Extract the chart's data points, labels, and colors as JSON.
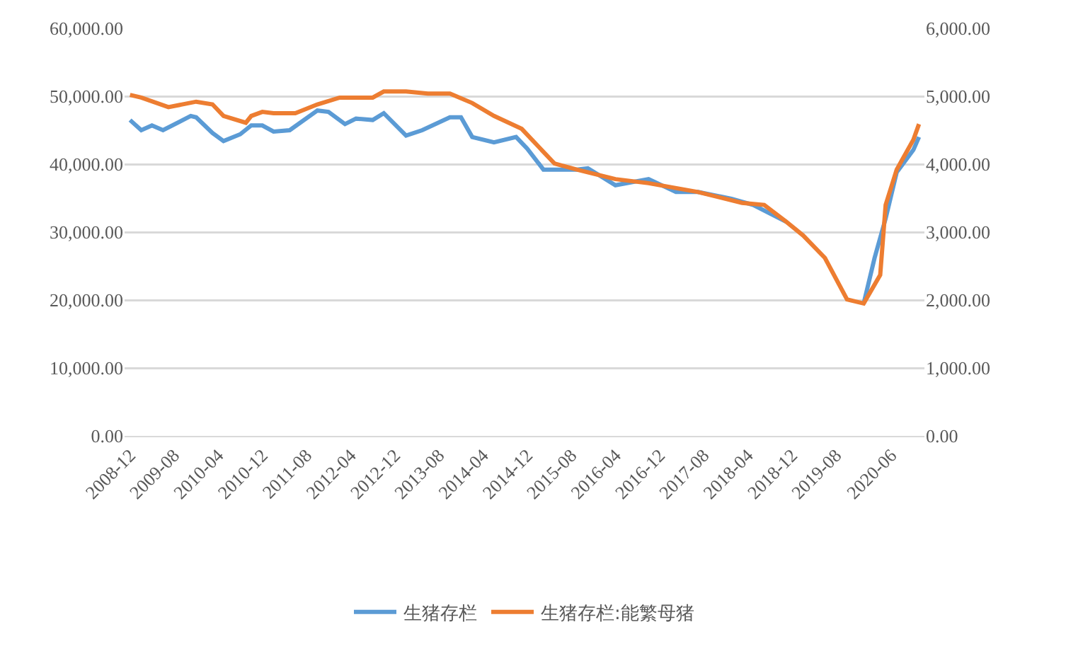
{
  "chart_data": {
    "type": "line",
    "x": [
      "2008-12",
      "2009-02",
      "2009-04",
      "2009-06",
      "2009-11",
      "2009-12",
      "2010-03",
      "2010-05",
      "2010-08",
      "2010-10",
      "2010-12",
      "2011-02",
      "2011-05",
      "2011-10",
      "2011-12",
      "2012-03",
      "2012-05",
      "2012-08",
      "2012-10",
      "2013-02",
      "2013-05",
      "2013-10",
      "2013-12",
      "2014-02",
      "2014-06",
      "2014-10",
      "2014-12",
      "2015-03",
      "2015-09",
      "2015-11",
      "2016-04",
      "2016-10",
      "2017-03",
      "2017-07",
      "2018-01",
      "2018-05",
      "2018-11",
      "2019-02",
      "2019-06",
      "2019-10",
      "2020-01",
      "2020-03",
      "2020-05",
      "2020-07",
      "2020-10",
      "2020-11"
    ],
    "series": [
      {
        "name": "生猪存栏",
        "color": "#5b9bd5",
        "axis": "y",
        "values": [
          46500,
          45000,
          45700,
          45000,
          47100,
          46900,
          44600,
          43400,
          44400,
          45700,
          45700,
          44800,
          45000,
          47900,
          47700,
          45900,
          46700,
          46500,
          47500,
          44200,
          45000,
          46900,
          46900,
          44000,
          43200,
          44000,
          42300,
          39200,
          39200,
          39400,
          36900,
          37800,
          35900,
          35900,
          34900,
          34000,
          31500,
          null,
          null,
          null,
          19500,
          26200,
          32000,
          38800,
          42100,
          44000
        ]
      },
      {
        "name": "生猪存栏:能繁母猪",
        "color": "#ed7d31",
        "axis": "y2",
        "x": [
          "2008-12",
          "2009-02",
          "2009-07",
          "2009-12",
          "2010-03",
          "2010-05",
          "2010-09",
          "2010-10",
          "2010-12",
          "2011-02",
          "2011-06",
          "2011-10",
          "2012-02",
          "2012-08",
          "2012-10",
          "2013-02",
          "2013-06",
          "2013-10",
          "2014-02",
          "2014-06",
          "2014-11",
          "2015-02",
          "2015-05",
          "2015-09",
          "2016-04",
          "2016-10",
          "2017-07",
          "2018-03",
          "2018-07",
          "2018-11",
          "2019-02",
          "2019-06",
          "2019-10",
          "2020-01",
          "2020-04",
          "2020-05",
          "2020-07",
          "2020-10",
          "2020-11"
        ],
        "values": [
          5020,
          4980,
          4840,
          4920,
          4880,
          4710,
          4610,
          4710,
          4770,
          4750,
          4750,
          4880,
          4980,
          4980,
          5070,
          5070,
          5040,
          5040,
          4900,
          4710,
          4520,
          4260,
          4010,
          3920,
          3780,
          3720,
          3590,
          3430,
          3400,
          3150,
          2950,
          2620,
          2010,
          1950,
          2370,
          3400,
          3920,
          4360,
          4590
        ]
      }
    ],
    "xlim": [
      "2008-11",
      "2020-12"
    ],
    "xticks": [
      "2008-12",
      "2009-08",
      "2010-04",
      "2010-12",
      "2011-08",
      "2012-04",
      "2012-12",
      "2013-08",
      "2014-04",
      "2014-12",
      "2015-08",
      "2016-04",
      "2016-12",
      "2017-08",
      "2018-04",
      "2018-12",
      "2019-08",
      "2020-06"
    ],
    "ylim": [
      0,
      60000
    ],
    "yticks": [
      {
        "value": 0,
        "label": "0.00"
      },
      {
        "value": 10000,
        "label": "10,000.00"
      },
      {
        "value": 20000,
        "label": "20,000.00"
      },
      {
        "value": 30000,
        "label": "30,000.00"
      },
      {
        "value": 40000,
        "label": "40,000.00"
      },
      {
        "value": 50000,
        "label": "50,000.00"
      },
      {
        "value": 60000,
        "label": "60,000.00"
      }
    ],
    "y2lim": [
      0,
      6000
    ],
    "y2ticks": [
      {
        "value": 0,
        "label": "0.00"
      },
      {
        "value": 1000,
        "label": "1,000.00"
      },
      {
        "value": 2000,
        "label": "2,000.00"
      },
      {
        "value": 3000,
        "label": "3,000.00"
      },
      {
        "value": 4000,
        "label": "4,000.00"
      },
      {
        "value": 5000,
        "label": "5,000.00"
      },
      {
        "value": 6000,
        "label": "6,000.00"
      }
    ],
    "grid": "y",
    "legend": "bottom",
    "marker": "none",
    "line_style": "solid"
  }
}
